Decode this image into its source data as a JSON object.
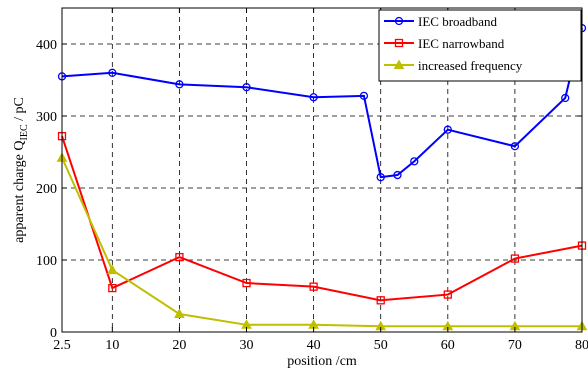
{
  "chart_data": {
    "type": "line",
    "xlabel": "position /cm",
    "ylabel_main": "apparent charge Q",
    "ylabel_sub": "IEC",
    "ylabel_tail": " / pC",
    "xlim": [
      2.5,
      80
    ],
    "ylim": [
      0,
      450
    ],
    "x_ticks": [
      2.5,
      10,
      20,
      30,
      40,
      50,
      60,
      70,
      80
    ],
    "x_tick_labels": [
      "2.5",
      "10",
      "20",
      "30",
      "40",
      "50",
      "60",
      "70",
      "80"
    ],
    "y_ticks": [
      0,
      100,
      200,
      300,
      400
    ],
    "y_tick_labels": [
      "0",
      "100",
      "200",
      "300",
      "400"
    ],
    "grid": true,
    "legend_position": "top-right",
    "series": [
      {
        "name": "IEC broadband",
        "color": "#0000ff",
        "marker": "circle",
        "x": [
          2.5,
          10,
          20,
          30,
          40,
          47.5,
          50,
          52.5,
          55,
          60,
          70,
          77.5,
          80
        ],
        "y": [
          355,
          360,
          344,
          340,
          326,
          328,
          215,
          218,
          237,
          281,
          258,
          325,
          422
        ]
      },
      {
        "name": "IEC narrowband",
        "color": "#ff0000",
        "marker": "square",
        "x": [
          2.5,
          10,
          20,
          30,
          40,
          50,
          60,
          70,
          80
        ],
        "y": [
          272,
          61,
          104,
          68,
          63,
          44,
          52,
          102,
          120
        ]
      },
      {
        "name": "increased frequency",
        "color": "#bfbf00",
        "marker": "triangle",
        "x": [
          2.5,
          10,
          20,
          30,
          40,
          50,
          60,
          70,
          80
        ],
        "y": [
          242,
          86,
          25,
          10,
          10,
          8,
          8,
          8,
          8
        ]
      }
    ]
  }
}
